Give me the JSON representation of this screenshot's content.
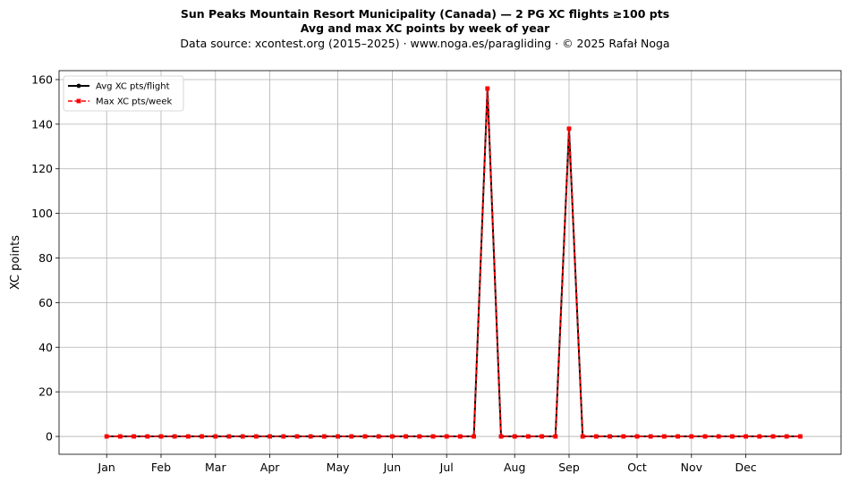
{
  "header": {
    "title": "Sun Peaks Mountain Resort Municipality (Canada)  —  2 PG XC flights ≥100 pts",
    "subtitle": "Avg and max XC points by week of year",
    "source": "Data source: xcontest.org (2015–2025)  ·  www.noga.es/paragliding  ·  © 2025 Rafał Noga"
  },
  "chart_data": {
    "type": "line",
    "title": "Sun Peaks Mountain Resort Municipality (Canada)  —  2 PG XC flights ≥100 pts",
    "subtitle": "Avg and max XC points by week of year",
    "xlabel": "",
    "ylabel": "XC points",
    "xlim": [
      -2.5,
      55
    ],
    "ylim": [
      -8,
      164
    ],
    "yticks": [
      0,
      20,
      40,
      60,
      80,
      100,
      120,
      140,
      160
    ],
    "xticks": [
      {
        "label": "Jan",
        "x": 1
      },
      {
        "label": "Feb",
        "x": 5
      },
      {
        "label": "Mar",
        "x": 9
      },
      {
        "label": "Apr",
        "x": 13
      },
      {
        "label": "May",
        "x": 18
      },
      {
        "label": "Jun",
        "x": 22
      },
      {
        "label": "Jul",
        "x": 26
      },
      {
        "label": "Aug",
        "x": 31
      },
      {
        "label": "Sep",
        "x": 35
      },
      {
        "label": "Oct",
        "x": 40
      },
      {
        "label": "Nov",
        "x": 44
      },
      {
        "label": "Dec",
        "x": 48
      }
    ],
    "grid": true,
    "legend_position": "top-left",
    "x": [
      1,
      2,
      3,
      4,
      5,
      6,
      7,
      8,
      9,
      10,
      11,
      12,
      13,
      14,
      15,
      16,
      17,
      18,
      19,
      20,
      21,
      22,
      23,
      24,
      25,
      26,
      27,
      28,
      29,
      30,
      31,
      32,
      33,
      34,
      35,
      36,
      37,
      38,
      39,
      40,
      41,
      42,
      43,
      44,
      45,
      46,
      47,
      48,
      49,
      50,
      51,
      52
    ],
    "series": [
      {
        "name": "Avg XC pts/flight",
        "color": "#000000",
        "style": "solid",
        "marker": "circle",
        "values": [
          0,
          0,
          0,
          0,
          0,
          0,
          0,
          0,
          0,
          0,
          0,
          0,
          0,
          0,
          0,
          0,
          0,
          0,
          0,
          0,
          0,
          0,
          0,
          0,
          0,
          0,
          0,
          0,
          156,
          0,
          0,
          0,
          0,
          0,
          138,
          0,
          0,
          0,
          0,
          0,
          0,
          0,
          0,
          0,
          0,
          0,
          0,
          0,
          0,
          0,
          0,
          0
        ]
      },
      {
        "name": "Max XC pts/week",
        "color": "#ff0000",
        "style": "dashed",
        "marker": "square",
        "values": [
          0,
          0,
          0,
          0,
          0,
          0,
          0,
          0,
          0,
          0,
          0,
          0,
          0,
          0,
          0,
          0,
          0,
          0,
          0,
          0,
          0,
          0,
          0,
          0,
          0,
          0,
          0,
          0,
          156,
          0,
          0,
          0,
          0,
          0,
          138,
          0,
          0,
          0,
          0,
          0,
          0,
          0,
          0,
          0,
          0,
          0,
          0,
          0,
          0,
          0,
          0,
          0
        ]
      }
    ]
  }
}
